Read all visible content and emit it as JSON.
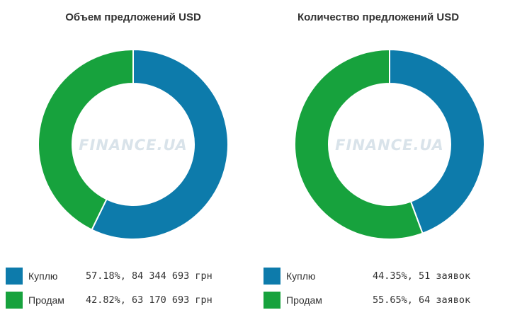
{
  "chart_data": [
    {
      "type": "pie",
      "title": "Объем предложений USD",
      "watermark": "FINANCE.UA",
      "slices": [
        {
          "name": "Куплю",
          "value": 57.18,
          "detail": "57.18%, 84 344 693 грн",
          "color": "#0d7bab"
        },
        {
          "name": "Продам",
          "value": 42.82,
          "detail": "42.82%, 63 170 693 грн",
          "color": "#17a23d"
        }
      ],
      "legend_position": "bottom"
    },
    {
      "type": "pie",
      "title": "Количество предложений USD",
      "watermark": "FINANCE.UA",
      "slices": [
        {
          "name": "Куплю",
          "value": 44.35,
          "detail": "44.35%, 51 заявок",
          "color": "#0d7bab"
        },
        {
          "name": "Продам",
          "value": 55.65,
          "detail": "55.65%, 64 заявок",
          "color": "#17a23d"
        }
      ],
      "legend_position": "bottom"
    }
  ]
}
